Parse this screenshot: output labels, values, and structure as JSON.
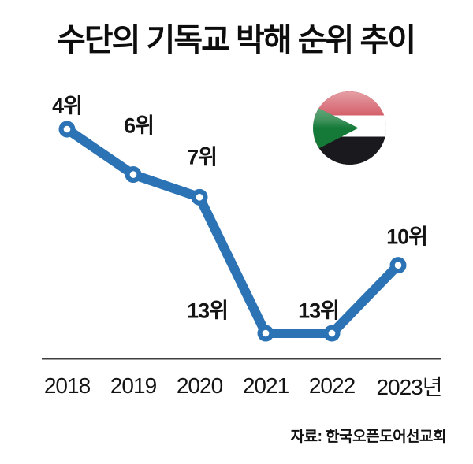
{
  "title": "수단의 기독교 박해 순위 추이",
  "source_note": "자료: 한국오픈도어선교회",
  "flag": {
    "country": "Sudan",
    "colors": {
      "red": "#C62B39",
      "white": "#FFFFFF",
      "black": "#1A1A1E",
      "green": "#157A38"
    }
  },
  "chart_data": {
    "type": "line",
    "categories": [
      "2018",
      "2019",
      "2020",
      "2021",
      "2022",
      "2023년"
    ],
    "values": [
      4,
      6,
      7,
      13,
      13,
      10
    ],
    "point_labels": [
      "4위",
      "6위",
      "7위",
      "13위",
      "13위",
      "10위"
    ],
    "unit": "위",
    "title": "수단의 기독교 박해 순위 추이",
    "xlabel": "",
    "ylabel": "",
    "y_axis": {
      "min": 4,
      "max": 13,
      "inverted_visual": true
    },
    "line_color": "#2B73B4",
    "marker_style": "donut",
    "axis_color": "#3F3F3F",
    "grid": false,
    "legend": false
  }
}
